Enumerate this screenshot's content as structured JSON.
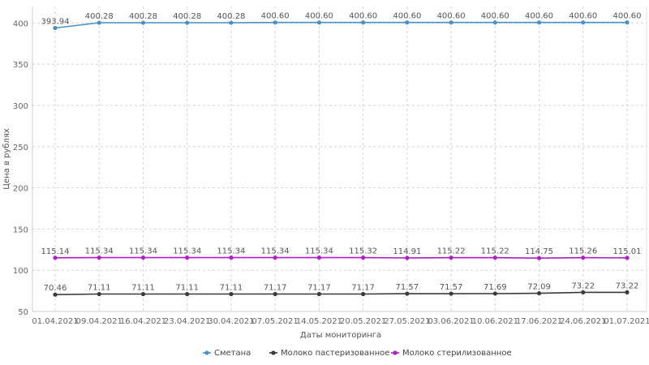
{
  "chart_data": {
    "type": "line",
    "title": "",
    "xlabel": "Даты мониторинга",
    "ylabel": "Цена в рублях",
    "ylim": [
      50,
      420
    ],
    "yticks": [
      50,
      100,
      150,
      200,
      250,
      300,
      350,
      400
    ],
    "grid": true,
    "legend": "bottom-center",
    "categories": [
      "01.04.2021",
      "09.04.2021",
      "16.04.2021",
      "23.04.2021",
      "30.04.2021",
      "07.05.2021",
      "14.05.2021",
      "20.05.2021",
      "27.05.2021",
      "03.06.2021",
      "10.06.2021",
      "17.06.2021",
      "24.06.2021",
      "01.07.2021"
    ],
    "series": [
      {
        "name": "Сметана",
        "color": "#4a90c8",
        "values": [
          393.94,
          400.28,
          400.28,
          400.28,
          400.28,
          400.6,
          400.6,
          400.6,
          400.6,
          400.6,
          400.6,
          400.6,
          400.6,
          400.6
        ],
        "labels": [
          "393.94",
          "400.28",
          "400.28",
          "400.28",
          "400.28",
          "400.60",
          "400.60",
          "400.60",
          "400.60",
          "400.60",
          "400.60",
          "400.60",
          "400.60",
          "400.60"
        ]
      },
      {
        "name": "Молоко пастеризованное",
        "color": "#3a3a3a",
        "values": [
          70.46,
          71.11,
          71.11,
          71.11,
          71.11,
          71.17,
          71.17,
          71.17,
          71.57,
          71.57,
          71.69,
          72.09,
          73.22,
          73.22
        ],
        "labels": [
          "70.46",
          "71.11",
          "71.11",
          "71.11",
          "71.11",
          "71.17",
          "71.17",
          "71.17",
          "71.57",
          "71.57",
          "71.69",
          "72.09",
          "73.22",
          "73.22"
        ]
      },
      {
        "name": "Молоко стерилизованное",
        "color": "#b01cc8",
        "values": [
          115.14,
          115.34,
          115.34,
          115.34,
          115.34,
          115.34,
          115.34,
          115.32,
          114.91,
          115.22,
          115.22,
          114.75,
          115.26,
          115.01
        ],
        "labels": [
          "115.14",
          "115.34",
          "115.34",
          "115.34",
          "115.34",
          "115.34",
          "115.34",
          "115.32",
          "114.91",
          "115.22",
          "115.22",
          "114.75",
          "115.26",
          "115.01"
        ]
      }
    ]
  }
}
